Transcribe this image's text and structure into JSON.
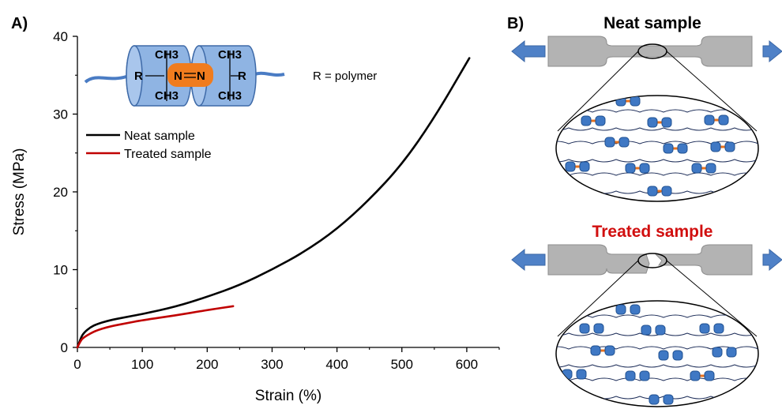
{
  "panels": {
    "a_label": "A)",
    "b_label": "B)"
  },
  "chart_data": {
    "type": "line",
    "xlabel": "Strain (%)",
    "ylabel": "Stress (MPa)",
    "xlim": [
      0,
      650
    ],
    "ylim": [
      0,
      40
    ],
    "xticks": [
      0,
      100,
      200,
      300,
      400,
      500,
      600
    ],
    "yticks": [
      0,
      10,
      20,
      30,
      40
    ],
    "legend_position": "upper-left",
    "series": [
      {
        "name": "Neat sample",
        "color": "#000000",
        "points": [
          [
            0,
            0
          ],
          [
            5,
            1.2
          ],
          [
            10,
            1.9
          ],
          [
            20,
            2.6
          ],
          [
            30,
            3.0
          ],
          [
            50,
            3.5
          ],
          [
            75,
            3.9
          ],
          [
            100,
            4.3
          ],
          [
            150,
            5.2
          ],
          [
            200,
            6.5
          ],
          [
            250,
            8.0
          ],
          [
            300,
            10.0
          ],
          [
            350,
            12.3
          ],
          [
            400,
            15.2
          ],
          [
            450,
            19.0
          ],
          [
            500,
            23.5
          ],
          [
            550,
            29.5
          ],
          [
            604,
            37.2
          ]
        ]
      },
      {
        "name": "Treated sample",
        "color": "#c00000",
        "points": [
          [
            0,
            0
          ],
          [
            5,
            0.9
          ],
          [
            10,
            1.3
          ],
          [
            20,
            1.8
          ],
          [
            30,
            2.2
          ],
          [
            50,
            2.7
          ],
          [
            75,
            3.1
          ],
          [
            100,
            3.5
          ],
          [
            150,
            4.1
          ],
          [
            200,
            4.8
          ],
          [
            240,
            5.3
          ]
        ]
      }
    ]
  },
  "molecule": {
    "r_left": "R",
    "r_right": "R",
    "ch3_top_left": "CH3",
    "ch3_bottom_left": "CH3",
    "ch3_top_right": "CH3",
    "ch3_bottom_right": "CH3",
    "n_left": "N",
    "n_right": "N",
    "note": "R = polymer",
    "colors": {
      "cylinder": "#8fb4e3",
      "azo": "#f07c1e",
      "chain": "#4a7cc4"
    }
  },
  "schematic": {
    "neat_caption": "Neat sample",
    "treated_caption": "Treated sample",
    "colors": {
      "specimen": "#b3b3b3",
      "arrow": "#4f81c7",
      "bead": "#3f78c4",
      "link": "#e8731f",
      "chain": "#1f2f5a"
    }
  }
}
